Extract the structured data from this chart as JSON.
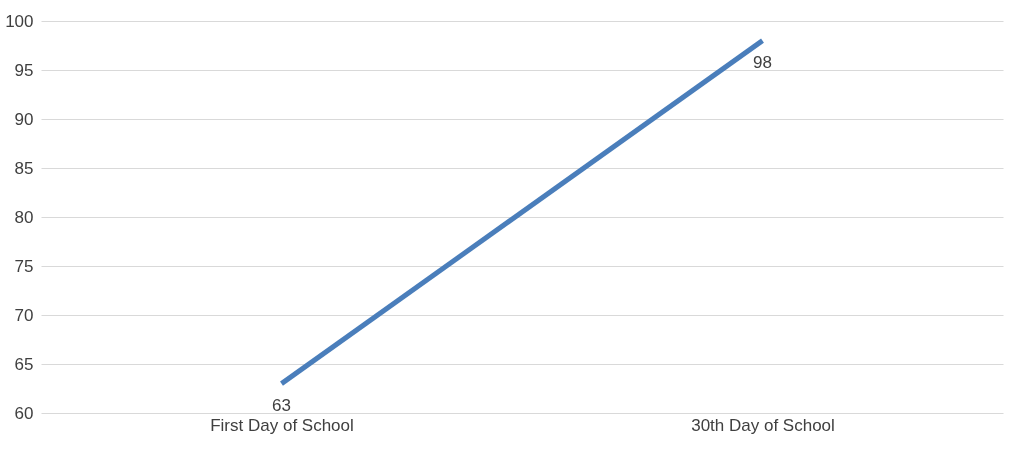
{
  "chart_data": {
    "type": "line",
    "categories": [
      "First Day of School",
      "30th Day of School"
    ],
    "series": [
      {
        "color": "#4a7ebb",
        "values": [
          63,
          98
        ]
      }
    ],
    "ylim": [
      60,
      100
    ],
    "yticks": [
      60,
      65,
      70,
      75,
      80,
      85,
      90,
      95,
      100
    ],
    "grid": "y",
    "data_labels": true,
    "marker": "none"
  }
}
